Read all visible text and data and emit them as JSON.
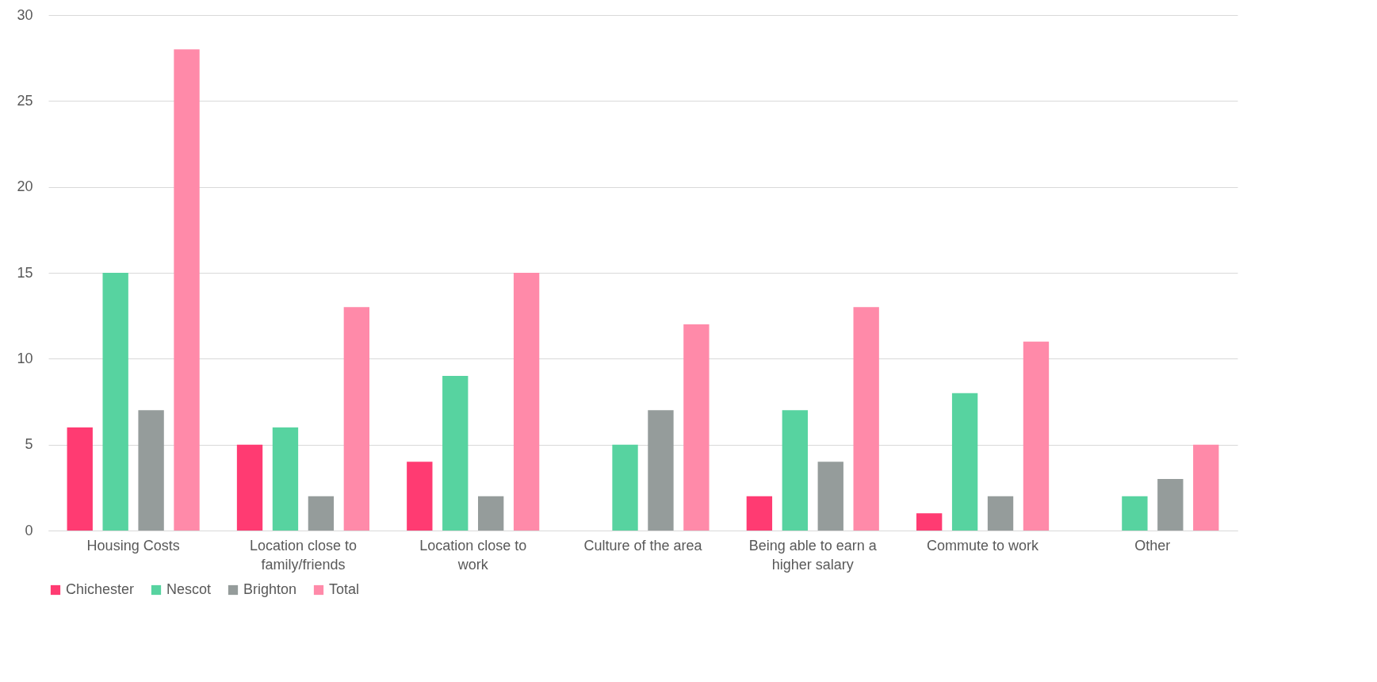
{
  "chart_data": {
    "type": "bar",
    "categories": [
      "Housing Costs",
      "Location close to family/friends",
      "Location close to work",
      "Culture of the area",
      "Being able to earn a higher salary",
      "Commute to work",
      "Other"
    ],
    "series": [
      {
        "name": "Chichester",
        "color": "#ff3b72",
        "values": [
          6,
          5,
          4,
          0,
          2,
          1,
          0
        ]
      },
      {
        "name": "Nescot",
        "color": "#57d3a0",
        "values": [
          15,
          6,
          9,
          5,
          7,
          8,
          2
        ]
      },
      {
        "name": "Brighton",
        "color": "#959c9b",
        "values": [
          7,
          2,
          2,
          7,
          4,
          2,
          3
        ]
      },
      {
        "name": "Total",
        "color": "#ff8aa9",
        "values": [
          28,
          13,
          15,
          12,
          13,
          11,
          5
        ]
      }
    ],
    "ylim": [
      0,
      30
    ],
    "yticks": [
      0,
      5,
      10,
      15,
      20,
      25,
      30
    ],
    "grid": "y",
    "legend": "bottom"
  }
}
